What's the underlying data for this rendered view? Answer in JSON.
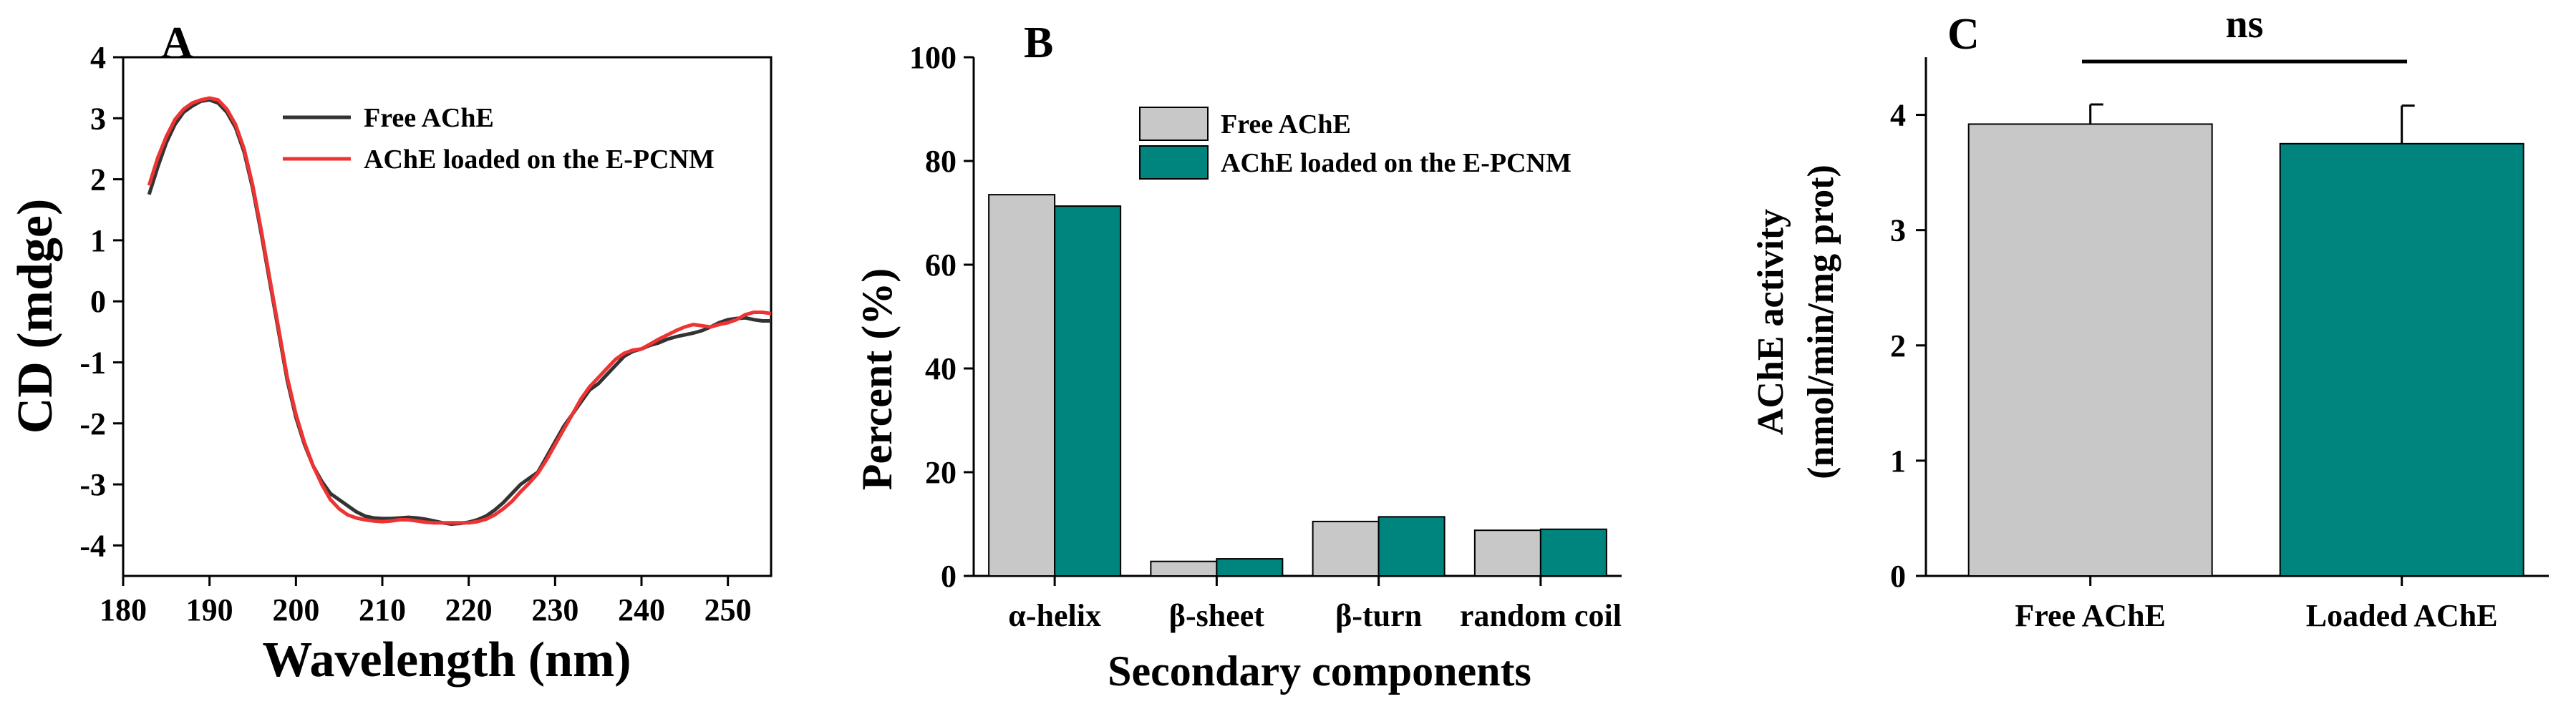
{
  "chart_data": [
    {
      "type": "line",
      "panel_label": "A",
      "xlabel": "Wavelength (nm)",
      "ylabel": "CD (mdge)",
      "xlim": [
        180,
        255
      ],
      "ylim": [
        -4.5,
        4
      ],
      "xticks": [
        "180",
        "190",
        "200",
        "210",
        "220",
        "230",
        "240",
        "250"
      ],
      "yticks": [
        "-4",
        "-3",
        "-2",
        "-1",
        "0",
        "1",
        "2",
        "3",
        "4"
      ],
      "legend_position": "top-right",
      "series": [
        {
          "name": "Free AChE",
          "color": "#333333",
          "points": [
            [
              183,
              1.75
            ],
            [
              184,
              2.2
            ],
            [
              185,
              2.6
            ],
            [
              186,
              2.9
            ],
            [
              187,
              3.1
            ],
            [
              188,
              3.2
            ],
            [
              189,
              3.28
            ],
            [
              190,
              3.3
            ],
            [
              191,
              3.25
            ],
            [
              192,
              3.1
            ],
            [
              193,
              2.85
            ],
            [
              194,
              2.45
            ],
            [
              195,
              1.85
            ],
            [
              196,
              1.1
            ],
            [
              197,
              0.3
            ],
            [
              198,
              -0.5
            ],
            [
              199,
              -1.3
            ],
            [
              200,
              -1.9
            ],
            [
              201,
              -2.35
            ],
            [
              202,
              -2.7
            ],
            [
              203,
              -2.95
            ],
            [
              204,
              -3.15
            ],
            [
              205,
              -3.25
            ],
            [
              206,
              -3.35
            ],
            [
              207,
              -3.45
            ],
            [
              208,
              -3.52
            ],
            [
              209,
              -3.55
            ],
            [
              210,
              -3.56
            ],
            [
              211,
              -3.56
            ],
            [
              212,
              -3.55
            ],
            [
              213,
              -3.54
            ],
            [
              214,
              -3.55
            ],
            [
              215,
              -3.57
            ],
            [
              216,
              -3.6
            ],
            [
              217,
              -3.63
            ],
            [
              218,
              -3.65
            ],
            [
              219,
              -3.64
            ],
            [
              220,
              -3.62
            ],
            [
              221,
              -3.58
            ],
            [
              222,
              -3.52
            ],
            [
              223,
              -3.42
            ],
            [
              224,
              -3.3
            ],
            [
              225,
              -3.15
            ],
            [
              226,
              -3.0
            ],
            [
              227,
              -2.9
            ],
            [
              228,
              -2.8
            ],
            [
              229,
              -2.55
            ],
            [
              230,
              -2.3
            ],
            [
              231,
              -2.05
            ],
            [
              232,
              -1.85
            ],
            [
              233,
              -1.65
            ],
            [
              234,
              -1.45
            ],
            [
              235,
              -1.35
            ],
            [
              236,
              -1.2
            ],
            [
              237,
              -1.05
            ],
            [
              238,
              -0.9
            ],
            [
              239,
              -0.82
            ],
            [
              240,
              -0.78
            ],
            [
              241,
              -0.72
            ],
            [
              242,
              -0.68
            ],
            [
              243,
              -0.62
            ],
            [
              244,
              -0.58
            ],
            [
              245,
              -0.55
            ],
            [
              246,
              -0.52
            ],
            [
              247,
              -0.48
            ],
            [
              248,
              -0.42
            ],
            [
              249,
              -0.35
            ],
            [
              250,
              -0.3
            ],
            [
              251,
              -0.28
            ],
            [
              252,
              -0.27
            ],
            [
              253,
              -0.3
            ],
            [
              254,
              -0.32
            ],
            [
              255,
              -0.32
            ]
          ]
        },
        {
          "name": "AChE loaded on the E-PCNM",
          "color": "#ee3333",
          "points": [
            [
              183,
              1.9
            ],
            [
              184,
              2.35
            ],
            [
              185,
              2.7
            ],
            [
              186,
              2.98
            ],
            [
              187,
              3.15
            ],
            [
              188,
              3.25
            ],
            [
              189,
              3.3
            ],
            [
              190,
              3.33
            ],
            [
              191,
              3.3
            ],
            [
              192,
              3.15
            ],
            [
              193,
              2.9
            ],
            [
              194,
              2.5
            ],
            [
              195,
              1.9
            ],
            [
              196,
              1.15
            ],
            [
              197,
              0.35
            ],
            [
              198,
              -0.45
            ],
            [
              199,
              -1.25
            ],
            [
              200,
              -1.85
            ],
            [
              201,
              -2.32
            ],
            [
              202,
              -2.7
            ],
            [
              203,
              -3.0
            ],
            [
              204,
              -3.25
            ],
            [
              205,
              -3.4
            ],
            [
              206,
              -3.5
            ],
            [
              207,
              -3.55
            ],
            [
              208,
              -3.58
            ],
            [
              209,
              -3.6
            ],
            [
              210,
              -3.61
            ],
            [
              211,
              -3.6
            ],
            [
              212,
              -3.58
            ],
            [
              213,
              -3.58
            ],
            [
              214,
              -3.6
            ],
            [
              215,
              -3.62
            ],
            [
              216,
              -3.63
            ],
            [
              217,
              -3.63
            ],
            [
              218,
              -3.63
            ],
            [
              219,
              -3.63
            ],
            [
              220,
              -3.63
            ],
            [
              221,
              -3.61
            ],
            [
              222,
              -3.57
            ],
            [
              223,
              -3.5
            ],
            [
              224,
              -3.4
            ],
            [
              225,
              -3.28
            ],
            [
              226,
              -3.12
            ],
            [
              227,
              -2.98
            ],
            [
              228,
              -2.82
            ],
            [
              229,
              -2.6
            ],
            [
              230,
              -2.35
            ],
            [
              231,
              -2.1
            ],
            [
              232,
              -1.85
            ],
            [
              233,
              -1.6
            ],
            [
              234,
              -1.4
            ],
            [
              235,
              -1.25
            ],
            [
              236,
              -1.1
            ],
            [
              237,
              -0.95
            ],
            [
              238,
              -0.85
            ],
            [
              239,
              -0.8
            ],
            [
              240,
              -0.78
            ],
            [
              241,
              -0.7
            ],
            [
              242,
              -0.62
            ],
            [
              243,
              -0.55
            ],
            [
              244,
              -0.48
            ],
            [
              245,
              -0.42
            ],
            [
              246,
              -0.38
            ],
            [
              247,
              -0.4
            ],
            [
              248,
              -0.42
            ],
            [
              249,
              -0.38
            ],
            [
              250,
              -0.35
            ],
            [
              251,
              -0.3
            ],
            [
              252,
              -0.22
            ],
            [
              253,
              -0.18
            ],
            [
              254,
              -0.18
            ],
            [
              255,
              -0.2
            ]
          ]
        }
      ]
    },
    {
      "type": "bar",
      "panel_label": "B",
      "xlabel": "Secondary components",
      "ylabel": "Percent (%)",
      "ylim": [
        0,
        100
      ],
      "yticks": [
        "0",
        "20",
        "40",
        "60",
        "80",
        "100"
      ],
      "categories": [
        "α-helix",
        "β-sheet",
        "β-turn",
        "random coil"
      ],
      "legend_position": "top-right",
      "series": [
        {
          "name": "Free AChE",
          "color": "#c8c8c8",
          "values": [
            73.5,
            2.8,
            10.5,
            8.8
          ]
        },
        {
          "name": "AChE loaded on the E-PCNM",
          "color": "#00847e",
          "values": [
            71.3,
            3.3,
            11.4,
            9.0
          ]
        }
      ]
    },
    {
      "type": "bar",
      "panel_label": "C",
      "ylabel_line1": "AChE activity",
      "ylabel_line2": "(nmol/min/mg prot)",
      "ylim": [
        0,
        4.5
      ],
      "yticks": [
        "0",
        "1",
        "2",
        "3",
        "4"
      ],
      "categories": [
        "Free AChE",
        "Loaded AChE"
      ],
      "values": [
        3.92,
        3.75
      ],
      "errors": [
        0.17,
        0.33
      ],
      "colors": [
        "#c8c8c8",
        "#00847e"
      ],
      "significance": "ns"
    }
  ]
}
